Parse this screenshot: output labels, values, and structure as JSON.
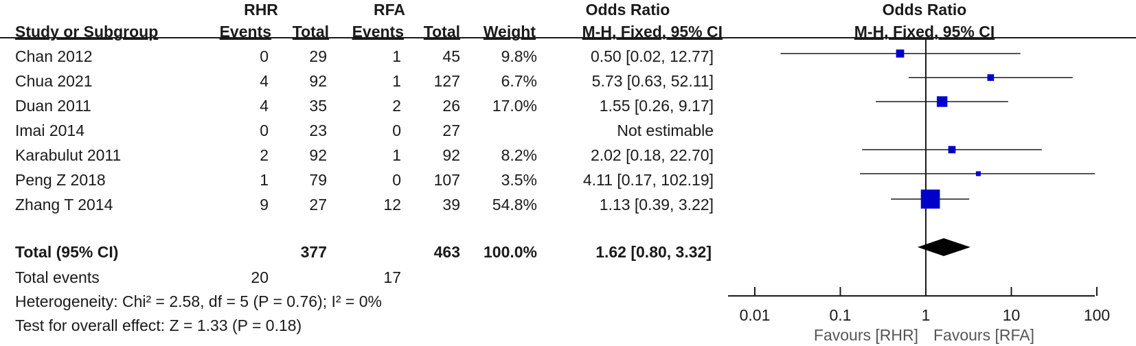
{
  "header": {
    "group1": "RHR",
    "group2": "RFA",
    "odds_ratio_col": "Odds Ratio",
    "odds_ratio_plot": "Odds Ratio",
    "study_col": "Study or Subgroup",
    "events1": "Events",
    "total1": "Total",
    "events2": "Events",
    "total2": "Total",
    "weight": "Weight",
    "method_col": "M-H, Fixed, 95% CI",
    "method_plot": "M-H, Fixed, 95% CI"
  },
  "studies": [
    {
      "name": "Chan 2012",
      "e1": "0",
      "n1": "29",
      "e2": "1",
      "n2": "45",
      "weight": "9.8%",
      "ci": "0.50 [0.02, 12.77]"
    },
    {
      "name": "Chua 2021",
      "e1": "4",
      "n1": "92",
      "e2": "1",
      "n2": "127",
      "weight": "6.7%",
      "ci": "5.73 [0.63, 52.11]"
    },
    {
      "name": "Duan 2011",
      "e1": "4",
      "n1": "35",
      "e2": "2",
      "n2": "26",
      "weight": "17.0%",
      "ci": "1.55 [0.26, 9.17]"
    },
    {
      "name": "Imai 2014",
      "e1": "0",
      "n1": "23",
      "e2": "0",
      "n2": "27",
      "weight": "",
      "ci": "Not estimable"
    },
    {
      "name": "Karabulut 2011",
      "e1": "2",
      "n1": "92",
      "e2": "1",
      "n2": "92",
      "weight": "8.2%",
      "ci": "2.02 [0.18, 22.70]"
    },
    {
      "name": "Peng Z 2018",
      "e1": "1",
      "n1": "79",
      "e2": "0",
      "n2": "107",
      "weight": "3.5%",
      "ci": "4.11 [0.17, 102.19]"
    },
    {
      "name": "Zhang T 2014",
      "e1": "9",
      "n1": "27",
      "e2": "12",
      "n2": "39",
      "weight": "54.8%",
      "ci": "1.13 [0.39, 3.22]"
    }
  ],
  "total": {
    "label": "Total (95% CI)",
    "n1": "377",
    "n2": "463",
    "weight": "100.0%",
    "ci": "1.62 [0.80, 3.32]"
  },
  "total_events": {
    "label": "Total events",
    "e1": "20",
    "e2": "17"
  },
  "heterogeneity": "Heterogeneity: Chi² = 2.58, df = 5 (P = 0.76); I² = 0%",
  "overall_effect": "Test for overall effect: Z = 1.33 (P = 0.18)",
  "axis": {
    "favours_left": "Favours [RHR]",
    "favours_right": "Favours [RFA]"
  },
  "chart_data": {
    "type": "scatter",
    "x_scale": "log",
    "xlim": [
      0.01,
      100
    ],
    "x_ticks": [
      {
        "value": 0.01,
        "label": "0.01"
      },
      {
        "value": 0.1,
        "label": "0.1"
      },
      {
        "value": 1,
        "label": "1"
      },
      {
        "value": 10,
        "label": "10"
      },
      {
        "value": 100,
        "label": "100"
      }
    ],
    "reference_line": 1,
    "points": [
      {
        "study": "Chan 2012",
        "or": 0.5,
        "lo": 0.02,
        "hi": 12.77,
        "weight": 9.8
      },
      {
        "study": "Chua 2021",
        "or": 5.73,
        "lo": 0.63,
        "hi": 52.11,
        "weight": 6.7
      },
      {
        "study": "Duan 2011",
        "or": 1.55,
        "lo": 0.26,
        "hi": 9.17,
        "weight": 17.0
      },
      {
        "study": "Imai 2014",
        "or": null,
        "lo": null,
        "hi": null,
        "weight": null
      },
      {
        "study": "Karabulut 2011",
        "or": 2.02,
        "lo": 0.18,
        "hi": 22.7,
        "weight": 8.2
      },
      {
        "study": "Peng Z 2018",
        "or": 4.11,
        "lo": 0.17,
        "hi": 102.19,
        "weight": 3.5
      },
      {
        "study": "Zhang T 2014",
        "or": 1.13,
        "lo": 0.39,
        "hi": 3.22,
        "weight": 54.8
      }
    ],
    "pooled": {
      "or": 1.62,
      "lo": 0.8,
      "hi": 3.32
    },
    "square_color": "#0000c8",
    "diamond_color": "#000000"
  }
}
